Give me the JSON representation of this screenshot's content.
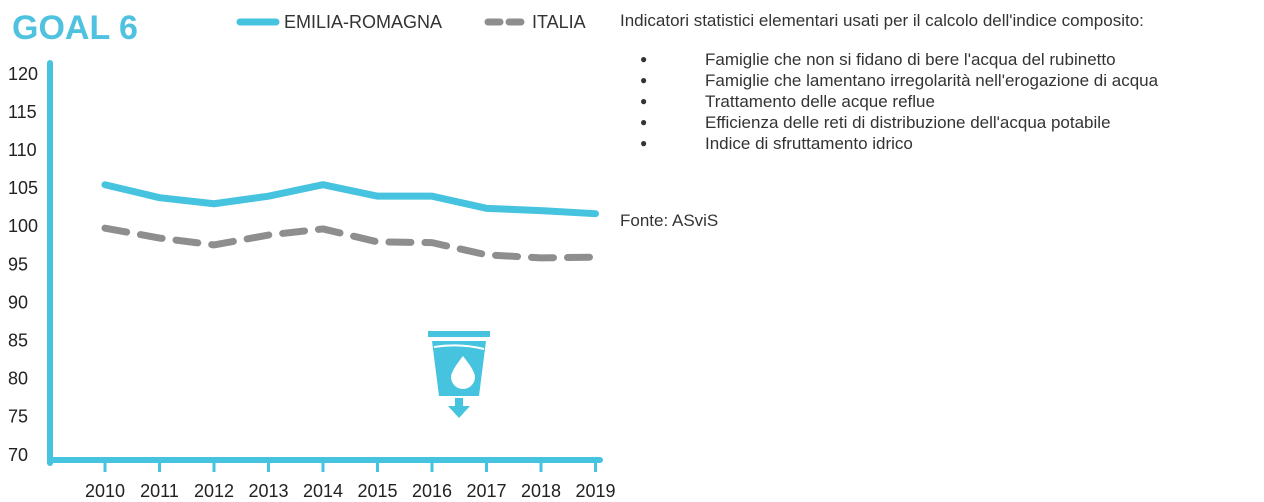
{
  "chart_data": {
    "type": "line",
    "title": "GOAL 6",
    "categories": [
      "2010",
      "2011",
      "2012",
      "2013",
      "2014",
      "2015",
      "2016",
      "2017",
      "2018",
      "2019"
    ],
    "series": [
      {
        "name": "EMILIA-ROMAGNA",
        "color": "#45c3df",
        "dash": false,
        "values": [
          105.6,
          103.9,
          103.1,
          104.1,
          105.6,
          104.1,
          104.1,
          102.5,
          102.2,
          101.8
        ]
      },
      {
        "name": "ITALIA",
        "color": "#8e8e8e",
        "dash": true,
        "values": [
          99.9,
          98.6,
          97.7,
          99.0,
          99.8,
          98.1,
          98.0,
          96.4,
          96.0,
          96.1
        ]
      }
    ],
    "ylim": [
      70,
      120
    ],
    "yticks": [
      70,
      75,
      80,
      85,
      90,
      95,
      100,
      105,
      110,
      115,
      120
    ],
    "grid": false,
    "legend": "top"
  },
  "description": {
    "intro": "Indicatori statistici elementari usati per il calcolo dell'indice composito:",
    "items": [
      "Famiglie che non si fidano di bere l'acqua del rubinetto",
      "Famiglie che lamentano irregolarità nell'erogazione di acqua",
      "Trattamento delle acque reflue",
      "Efficienza delle reti di distribuzione dell'acqua potabile",
      "Indice di sfruttamento idrico"
    ],
    "source": "Fonte: ASviS"
  }
}
